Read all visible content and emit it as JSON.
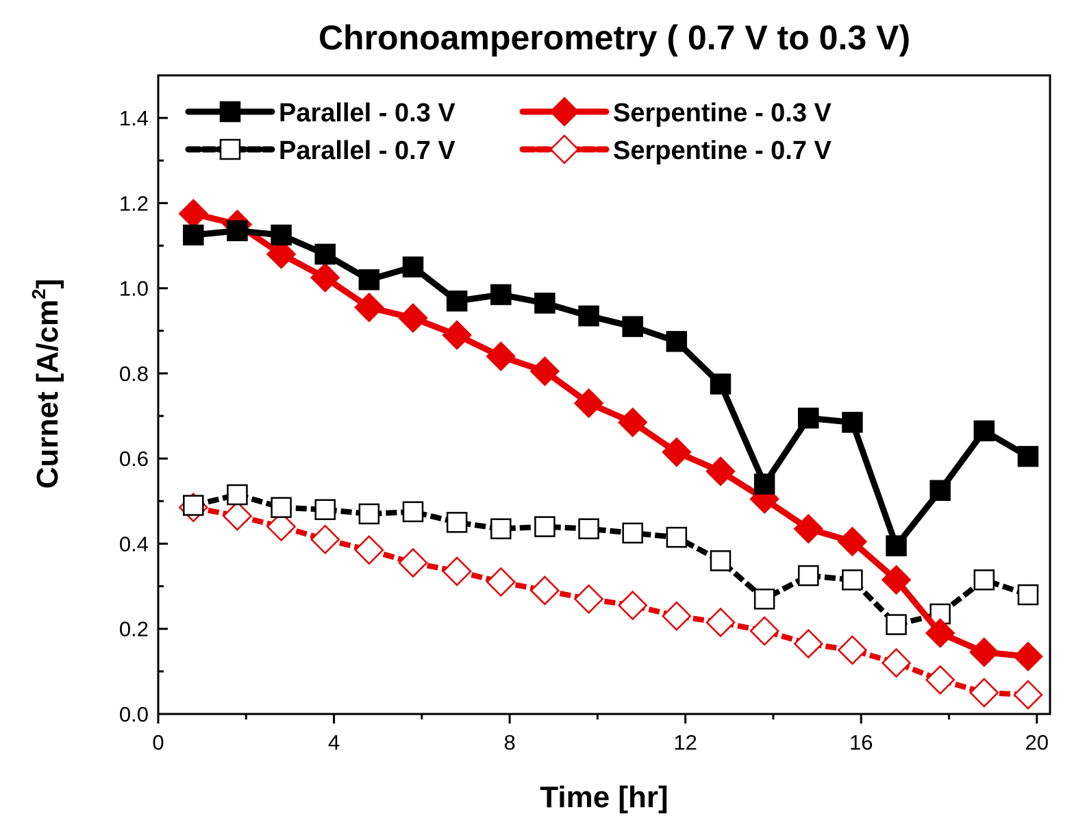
{
  "chart_data": {
    "type": "line",
    "title": "Chronoamperometry ( 0.7 V to 0.3 V)",
    "xlabel": "Time [hr]",
    "ylabel_main": "Curnet [A/cm",
    "ylabel_sup": "2",
    "ylabel_close": "]",
    "xlim": [
      0,
      20.3
    ],
    "ylim": [
      0,
      1.5
    ],
    "xticks": [
      0,
      4,
      8,
      12,
      16,
      20
    ],
    "xtick_labels": [
      "0",
      "4",
      "8",
      "12",
      "16",
      "20"
    ],
    "yticks": [
      0.0,
      0.2,
      0.4,
      0.6,
      0.8,
      1.0,
      1.2,
      1.4
    ],
    "ytick_labels": [
      "0.0",
      "0.2",
      "0.4",
      "0.6",
      "0.8",
      "1.0",
      "1.2",
      "1.4"
    ],
    "grid": false,
    "legend_position": "top",
    "x": [
      0.8,
      1.8,
      2.8,
      3.8,
      4.8,
      5.8,
      6.8,
      7.8,
      8.8,
      9.8,
      10.8,
      11.8,
      12.8,
      13.8,
      14.8,
      15.8,
      16.8,
      17.8,
      18.8,
      19.8
    ],
    "series": [
      {
        "name": "Parallel - 0.3 V",
        "color": "#000000",
        "marker": "square",
        "filled": true,
        "values": [
          1.125,
          1.135,
          1.125,
          1.08,
          1.02,
          1.05,
          0.97,
          0.985,
          0.965,
          0.935,
          0.91,
          0.875,
          0.775,
          0.54,
          0.695,
          0.685,
          0.395,
          0.525,
          0.665,
          0.605
        ]
      },
      {
        "name": "Serpentine - 0.3 V",
        "color": "#e60000",
        "marker": "diamond",
        "filled": true,
        "values": [
          1.175,
          1.15,
          1.08,
          1.025,
          0.955,
          0.93,
          0.89,
          0.84,
          0.805,
          0.73,
          0.685,
          0.615,
          0.57,
          0.505,
          0.435,
          0.405,
          0.315,
          0.19,
          0.145,
          0.135
        ]
      },
      {
        "name": "Parallel - 0.7 V",
        "color": "#000000",
        "marker": "square",
        "filled": false,
        "values": [
          0.49,
          0.515,
          0.485,
          0.48,
          0.47,
          0.475,
          0.45,
          0.435,
          0.44,
          0.435,
          0.425,
          0.415,
          0.36,
          0.27,
          0.325,
          0.315,
          0.21,
          0.235,
          0.315,
          0.28
        ]
      },
      {
        "name": "Serpentine - 0.7 V",
        "color": "#e60000",
        "marker": "diamond",
        "filled": false,
        "values": [
          0.485,
          0.465,
          0.44,
          0.41,
          0.385,
          0.355,
          0.335,
          0.31,
          0.29,
          0.27,
          0.255,
          0.23,
          0.215,
          0.195,
          0.165,
          0.15,
          0.12,
          0.08,
          0.05,
          0.045
        ]
      }
    ]
  }
}
